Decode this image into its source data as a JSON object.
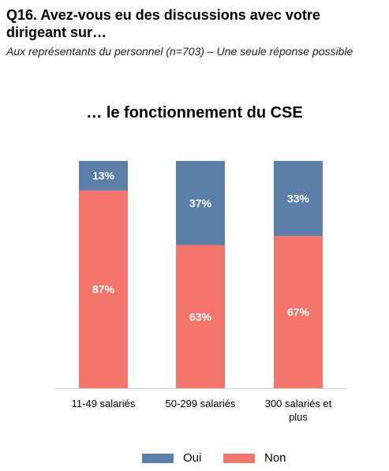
{
  "header": {
    "question": "Q16. Avez-vous eu des discussions avec votre dirigeant sur…",
    "subtitle": "Aux représentants du personnel (n=703) – Une seule réponse possible"
  },
  "colors": {
    "oui": "#5b7fa8",
    "non": "#f4756b"
  },
  "chart_data": {
    "type": "bar",
    "stacked": true,
    "title": "… le fonctionnement du CSE",
    "categories": [
      "11-49 salariés",
      "50-299 salariés",
      "300 salariés et plus"
    ],
    "series": [
      {
        "name": "Non",
        "values": [
          87,
          63,
          67
        ],
        "labels": [
          "87%",
          "63%",
          "67%"
        ]
      },
      {
        "name": "Oui",
        "values": [
          13,
          37,
          33
        ],
        "labels": [
          "13%",
          "37%",
          "33%"
        ]
      }
    ],
    "ylim": [
      0,
      100
    ],
    "grid": false,
    "legend": "bottom"
  }
}
